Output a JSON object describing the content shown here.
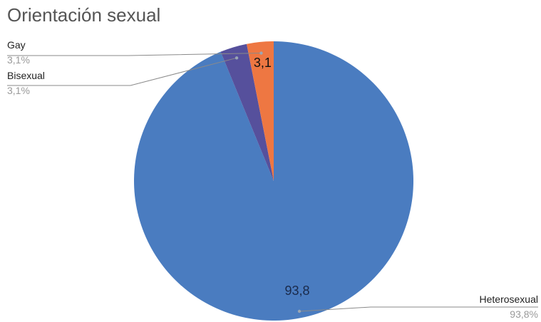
{
  "chart_data": {
    "type": "pie",
    "title": "Orientación sexual",
    "start_angle_deg": 0,
    "direction": "clockwise",
    "slices": [
      {
        "name": "Heterosexual",
        "value": 93.8,
        "percent_label": "93,8%",
        "data_label": "93,8",
        "color": "#4a7cc0",
        "label_color": "#1a2a4a",
        "callout_side": "right"
      },
      {
        "name": "Bisexual",
        "value": 3.1,
        "percent_label": "3,1%",
        "data_label": "",
        "color": "#56509c",
        "label_color": "#000000",
        "callout_side": "left"
      },
      {
        "name": "Gay",
        "value": 3.1,
        "percent_label": "3,1%",
        "data_label": "3,1",
        "color": "#ee7742",
        "label_color": "#111111",
        "callout_side": "left"
      }
    ]
  }
}
